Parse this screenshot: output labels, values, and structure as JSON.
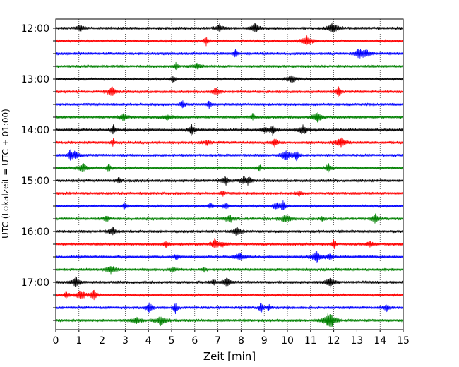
{
  "chart_data": {
    "type": "line",
    "title": "",
    "xlabel": "Zeit  [min]",
    "ylabel": "UTC (Lokalzeit = UTC + 01:00)",
    "xlim": [
      0,
      15
    ],
    "xticks": [
      "0",
      "1",
      "2",
      "3",
      "4",
      "5",
      "6",
      "7",
      "8",
      "9",
      "10",
      "11",
      "12",
      "13",
      "14",
      "15"
    ],
    "ytick_labels": [
      "12:00",
      "13:00",
      "14:00",
      "15:00",
      "16:00",
      "17:00"
    ],
    "grid": "vertical-dotted",
    "trace_interval_minutes": 15,
    "trace_colors": [
      "#000000",
      "#ff0000",
      "#0000ff",
      "#008000"
    ],
    "traces": [
      {
        "start": "12:00",
        "color": "#000000"
      },
      {
        "start": "12:15",
        "color": "#ff0000"
      },
      {
        "start": "12:30",
        "color": "#0000ff"
      },
      {
        "start": "12:45",
        "color": "#008000"
      },
      {
        "start": "13:00",
        "color": "#000000"
      },
      {
        "start": "13:15",
        "color": "#ff0000"
      },
      {
        "start": "13:30",
        "color": "#0000ff"
      },
      {
        "start": "13:45",
        "color": "#008000"
      },
      {
        "start": "14:00",
        "color": "#000000"
      },
      {
        "start": "14:15",
        "color": "#ff0000"
      },
      {
        "start": "14:30",
        "color": "#0000ff"
      },
      {
        "start": "14:45",
        "color": "#008000"
      },
      {
        "start": "15:00",
        "color": "#000000"
      },
      {
        "start": "15:15",
        "color": "#ff0000"
      },
      {
        "start": "15:30",
        "color": "#0000ff"
      },
      {
        "start": "15:45",
        "color": "#008000"
      },
      {
        "start": "16:00",
        "color": "#000000"
      },
      {
        "start": "16:15",
        "color": "#ff0000"
      },
      {
        "start": "16:30",
        "color": "#0000ff"
      },
      {
        "start": "16:45",
        "color": "#008000"
      },
      {
        "start": "17:00",
        "color": "#000000"
      },
      {
        "start": "17:15",
        "color": "#ff0000"
      },
      {
        "start": "17:30",
        "color": "#0000ff"
      },
      {
        "start": "17:45",
        "color": "#008000"
      }
    ]
  }
}
